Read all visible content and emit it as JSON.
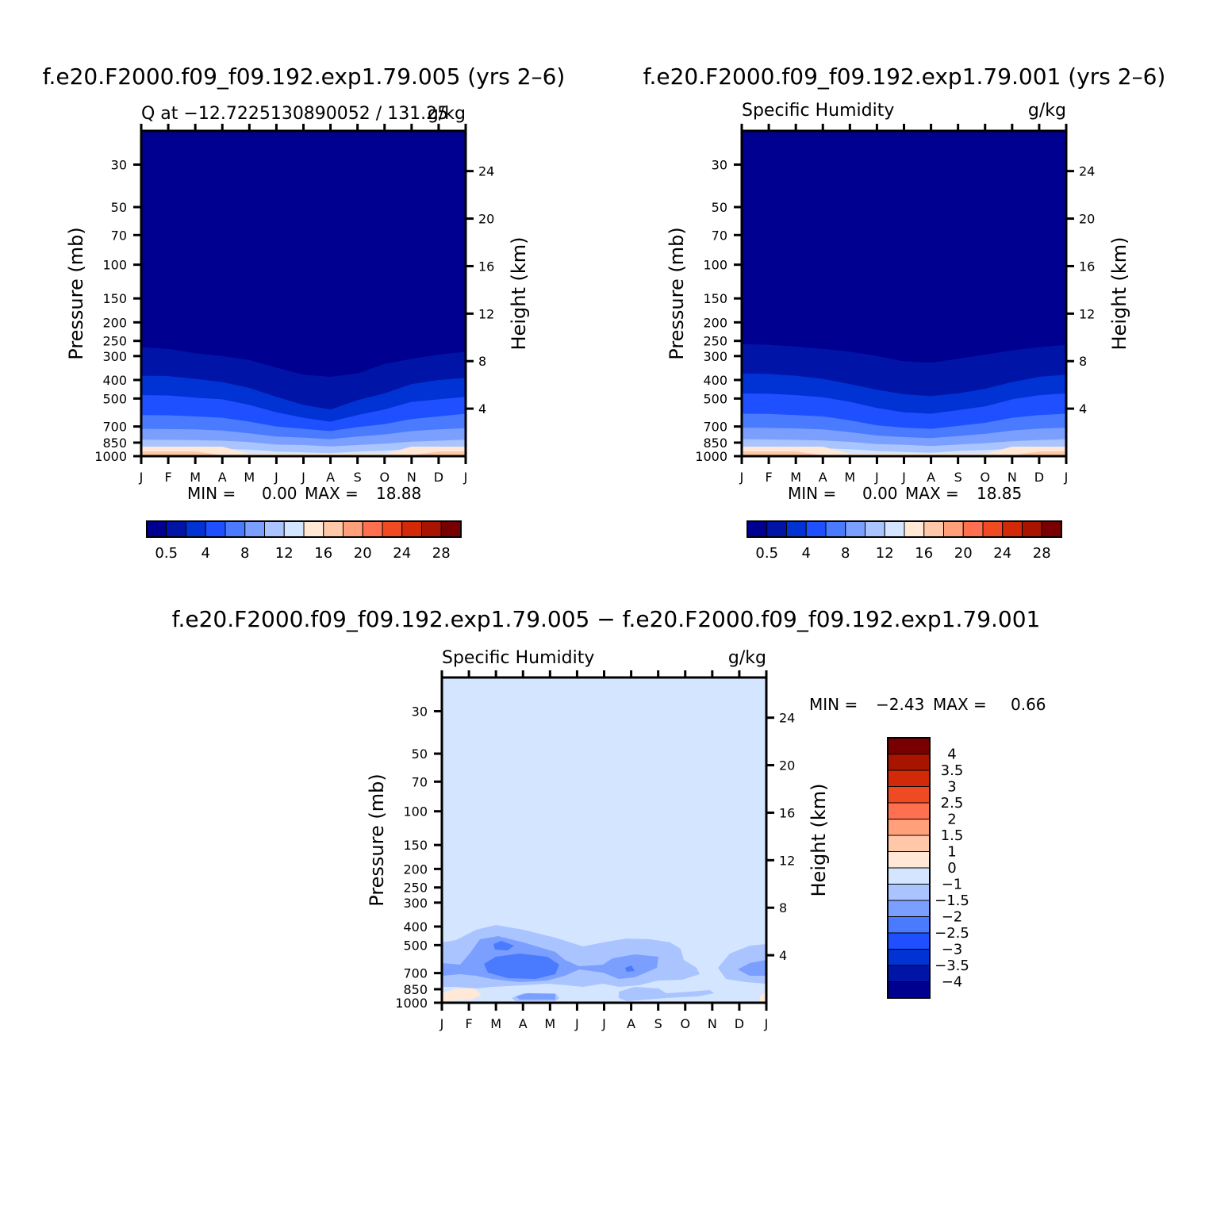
{
  "months": [
    "J",
    "F",
    "M",
    "A",
    "M",
    "J",
    "J",
    "A",
    "S",
    "O",
    "N",
    "D",
    "J"
  ],
  "pressure_ticks": [
    30,
    50,
    70,
    100,
    150,
    200,
    250,
    300,
    400,
    500,
    700,
    850,
    1000
  ],
  "height_ticks": [
    4,
    8,
    12,
    16,
    20,
    24
  ],
  "panels": {
    "exp005": {
      "title": "f.e20.F2000.f09_f09.192.exp1.79.005 (yrs 2–6)",
      "left_label": "Q at −12.7225130890052 / 131.25",
      "right_label": "g/kg",
      "ylabel": "Pressure (mb)",
      "ylabel_right": "Height (km)",
      "min_label": "MIN =",
      "min_value": "0.00",
      "max_label": "MAX =",
      "max_value": "18.88"
    },
    "exp001": {
      "title": "f.e20.F2000.f09_f09.192.exp1.79.001 (yrs 2–6)",
      "left_label": "Specific Humidity",
      "right_label": "g/kg",
      "ylabel": "Pressure (mb)",
      "ylabel_right": "Height (km)",
      "min_label": "MIN =",
      "min_value": "0.00",
      "max_label": "MAX =",
      "max_value": "18.85"
    },
    "diff": {
      "title": "f.e20.F2000.f09_f09.192.exp1.79.005 − f.e20.F2000.f09_f09.192.exp1.79.001",
      "left_label": "Specific Humidity",
      "right_label": "g/kg",
      "ylabel": "Pressure (mb)",
      "ylabel_right": "Height (km)",
      "min_label": "MIN =",
      "min_value": "−2.43",
      "max_label": "MAX =",
      "max_value": "0.66"
    }
  },
  "colorbar_abs": {
    "colors": [
      "#000090",
      "#0015a8",
      "#0032d4",
      "#1e50ff",
      "#4a7bff",
      "#7b9fff",
      "#aac4ff",
      "#d4e6ff",
      "#ffe8d6",
      "#ffc8a8",
      "#ffa07a",
      "#ff7050",
      "#f04a22",
      "#d22a08",
      "#a81400",
      "#780000"
    ],
    "labels": [
      "0.5",
      "4",
      "8",
      "12",
      "16",
      "20",
      "24",
      "28"
    ]
  },
  "colorbar_diff": {
    "colors": [
      "#000090",
      "#0015a8",
      "#0032d4",
      "#1e50ff",
      "#4a7bff",
      "#7b9fff",
      "#aac4ff",
      "#d4e6ff",
      "#ffe8d6",
      "#ffc8a8",
      "#ffa07a",
      "#ff7050",
      "#f04a22",
      "#d22a08",
      "#a81400",
      "#780000"
    ],
    "labels": [
      "4",
      "3.5",
      "3",
      "2.5",
      "2",
      "1.5",
      "1",
      "0",
      "−1",
      "−1.5",
      "−2",
      "−2.5",
      "−3",
      "−3.5",
      "−4"
    ]
  },
  "chart_data": [
    {
      "type": "heatmap",
      "title": "f.e20.F2000.f09_f09.192.exp1.79.005 (yrs 2–6)",
      "subtitle": "Q at −12.7225130890052 / 131.25",
      "units": "g/kg",
      "xlabel": "",
      "ylabel": "Pressure (mb)",
      "ylabel_right": "Height (km)",
      "x": [
        "J",
        "F",
        "M",
        "A",
        "M",
        "J",
        "J",
        "A",
        "S",
        "O",
        "N",
        "D",
        "J"
      ],
      "y_scale": "log",
      "ylim": [
        1000,
        20
      ],
      "bands": [
        {
          "level": 0.5,
          "y": [
            270,
            275,
            290,
            300,
            315,
            345,
            375,
            385,
            370,
            330,
            310,
            295,
            285
          ]
        },
        {
          "level": 4,
          "y": [
            380,
            382,
            395,
            410,
            440,
            490,
            540,
            570,
            510,
            470,
            420,
            400,
            390
          ]
        },
        {
          "level": 8,
          "y": [
            480,
            482,
            495,
            505,
            540,
            590,
            630,
            660,
            610,
            570,
            520,
            505,
            490
          ]
        },
        {
          "level": 12,
          "y": [
            610,
            612,
            620,
            630,
            660,
            700,
            720,
            740,
            705,
            680,
            640,
            620,
            600
          ]
        },
        {
          "level": 16,
          "y": [
            720,
            722,
            725,
            735,
            760,
            790,
            800,
            815,
            790,
            770,
            740,
            725,
            715
          ]
        },
        {
          "level": 20,
          "y": [
            820,
            822,
            825,
            830,
            845,
            870,
            875,
            890,
            875,
            860,
            840,
            830,
            820
          ]
        },
        {
          "level": 24,
          "y": [
            900,
            905,
            910,
            915,
            925,
            945,
            955,
            965,
            945,
            935,
            920,
            910,
            900
          ]
        }
      ],
      "min": 0.0,
      "max": 18.88
    },
    {
      "type": "heatmap",
      "title": "f.e20.F2000.f09_f09.192.exp1.79.001 (yrs 2–6)",
      "subtitle": "Specific Humidity",
      "units": "g/kg",
      "xlabel": "",
      "ylabel": "Pressure (mb)",
      "ylabel_right": "Height (km)",
      "x": [
        "J",
        "F",
        "M",
        "A",
        "M",
        "J",
        "J",
        "A",
        "S",
        "O",
        "N",
        "D",
        "J"
      ],
      "y_scale": "log",
      "ylim": [
        1000,
        20
      ],
      "bands": [
        {
          "level": 0.5,
          "y": [
            260,
            262,
            268,
            275,
            285,
            300,
            320,
            325,
            310,
            295,
            280,
            270,
            262
          ]
        },
        {
          "level": 4,
          "y": [
            370,
            372,
            380,
            395,
            420,
            450,
            475,
            485,
            470,
            445,
            410,
            385,
            375
          ]
        },
        {
          "level": 8,
          "y": [
            470,
            472,
            480,
            492,
            520,
            560,
            590,
            600,
            575,
            550,
            505,
            480,
            470
          ]
        },
        {
          "level": 12,
          "y": [
            600,
            602,
            610,
            620,
            650,
            690,
            710,
            720,
            695,
            670,
            630,
            610,
            600
          ]
        },
        {
          "level": 16,
          "y": [
            710,
            712,
            716,
            725,
            750,
            780,
            795,
            805,
            785,
            765,
            735,
            718,
            710
          ]
        },
        {
          "level": 20,
          "y": [
            815,
            818,
            822,
            828,
            842,
            865,
            872,
            885,
            870,
            855,
            835,
            825,
            815
          ]
        },
        {
          "level": 24,
          "y": [
            895,
            900,
            905,
            910,
            920,
            940,
            950,
            960,
            940,
            930,
            915,
            905,
            895
          ]
        }
      ],
      "min": 0.0,
      "max": 18.85
    },
    {
      "type": "heatmap",
      "title": "f.e20.F2000.f09_f09.192.exp1.79.005 − f.e20.F2000.f09_f09.192.exp1.79.001",
      "subtitle": "Specific Humidity",
      "units": "g/kg",
      "xlabel": "",
      "ylabel": "Pressure (mb)",
      "ylabel_right": "Height (km)",
      "x": [
        "J",
        "F",
        "M",
        "A",
        "M",
        "J",
        "J",
        "A",
        "S",
        "O",
        "N",
        "D",
        "J"
      ],
      "y_scale": "log",
      "ylim": [
        1000,
        20
      ],
      "background_level": "-1 to 0",
      "min": -2.43,
      "max": 0.66
    }
  ]
}
